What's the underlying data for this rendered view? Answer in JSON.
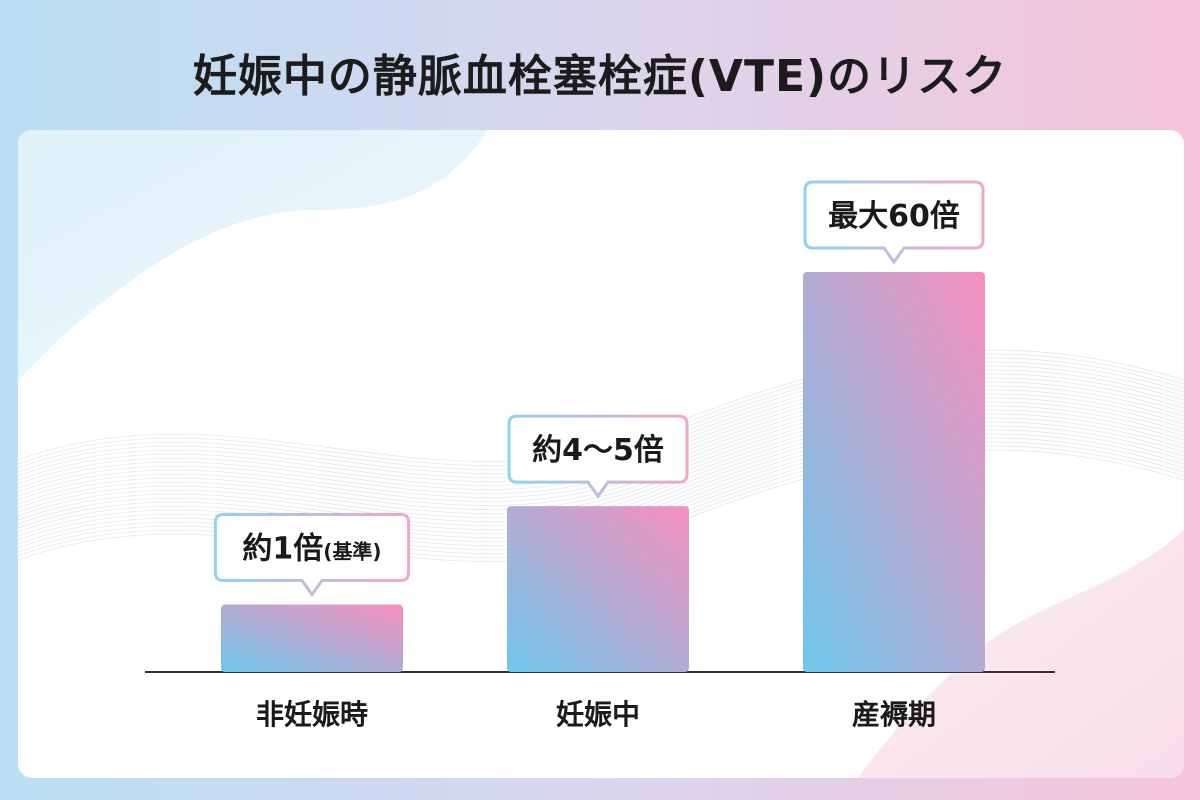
{
  "title": "妊娠中の静脈血栓塞栓症(VTE)のリスク",
  "colors": {
    "bar_start": "#6ec8ec",
    "bar_end": "#f78fbd",
    "callout_border_start": "#8fd3ef",
    "callout_border_end": "#f2a6c8",
    "baseline": "#333333"
  },
  "chart_data": {
    "type": "bar",
    "categories": [
      "非妊娠時",
      "妊娠中",
      "産褥期"
    ],
    "values": [
      1,
      4.5,
      60
    ],
    "value_labels": [
      {
        "main": "約1倍",
        "suffix": "(基準)"
      },
      {
        "main": "約4〜5倍",
        "suffix": ""
      },
      {
        "main": "最大60倍",
        "suffix": ""
      }
    ],
    "title": "妊娠中の静脈血栓塞栓症(VTE)のリスク",
    "xlabel": "",
    "ylabel": "",
    "grid": false,
    "legend": "none"
  }
}
